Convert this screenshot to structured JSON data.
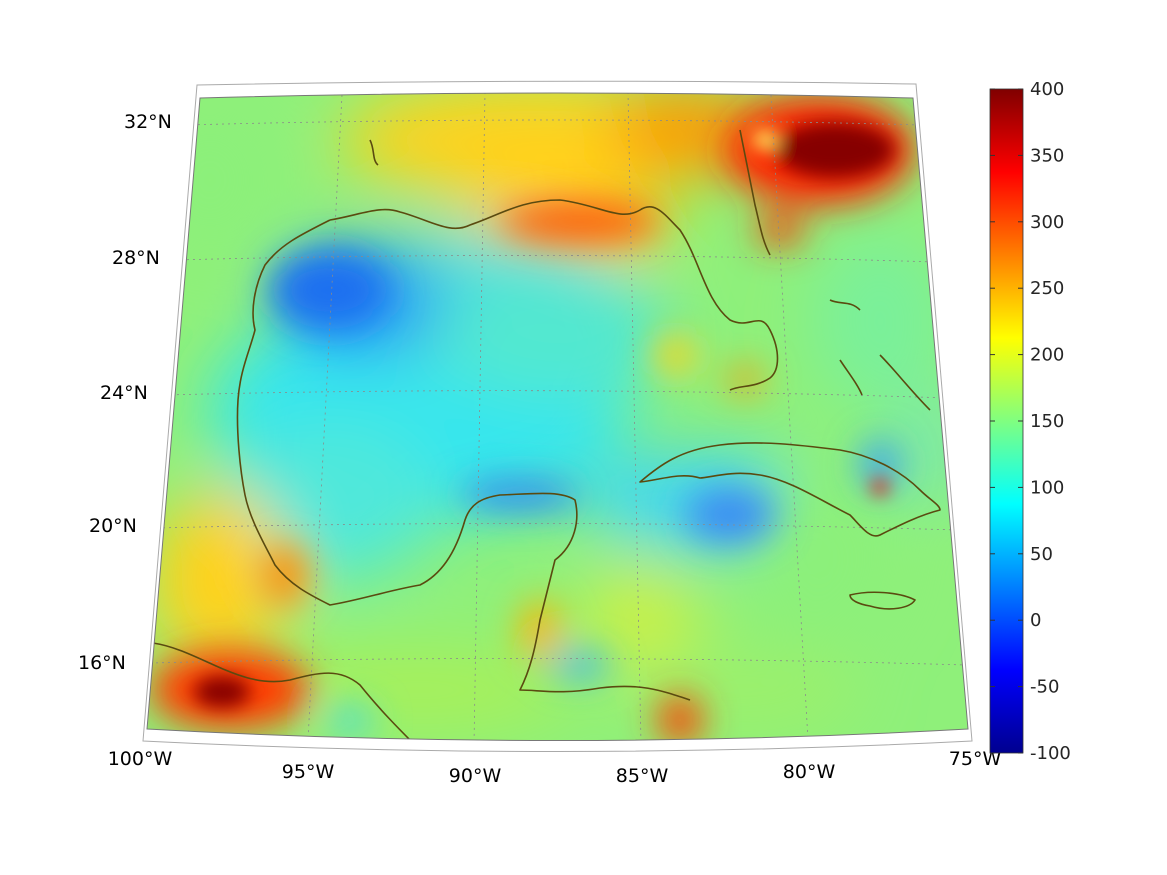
{
  "map": {
    "projection": "conic",
    "grid": true,
    "coastline_color": "#5a4a10",
    "lon_labels": [
      "100°W",
      "95°W",
      "90°W",
      "85°W",
      "80°W",
      "75°W"
    ],
    "lat_labels": [
      "16°N",
      "20°N",
      "24°N",
      "28°N",
      "32°N"
    ],
    "lon_values": [
      -100,
      -95,
      -90,
      -85,
      -80,
      -75
    ],
    "lat_values": [
      16,
      20,
      24,
      28,
      32
    ]
  },
  "colorbar": {
    "colormap": "jet",
    "range": [
      -100,
      400
    ],
    "tick_labels": [
      "400",
      "350",
      "300",
      "250",
      "200",
      "150",
      "100",
      "50",
      "0",
      "-50",
      "-100"
    ],
    "tick_values": [
      400,
      350,
      300,
      250,
      200,
      150,
      100,
      50,
      0,
      -50,
      -100
    ]
  }
}
